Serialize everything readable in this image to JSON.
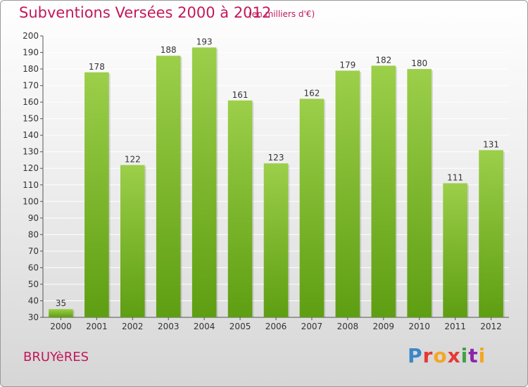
{
  "header": {
    "title": "Subventions Versées 2000 à 2012",
    "subtitle": "(en milliers d'€)"
  },
  "footer": {
    "place": "BRUYèRES",
    "logo_text": "Proxiti"
  },
  "colors": {
    "title": "#c2185b",
    "bar_top": "#9ccf4a",
    "bar_bottom": "#5e9e12",
    "grid": "#ffffff",
    "axis_text": "#333333"
  },
  "chart_data": {
    "type": "bar",
    "title": "Subventions Versées 2000 à 2012",
    "subtitle": "(en milliers d'€)",
    "categories": [
      "2000",
      "2001",
      "2002",
      "2003",
      "2004",
      "2005",
      "2006",
      "2007",
      "2008",
      "2009",
      "2010",
      "2011",
      "2012"
    ],
    "values": [
      35,
      178,
      122,
      188,
      193,
      161,
      123,
      162,
      179,
      182,
      180,
      111,
      131
    ],
    "ylim": [
      30,
      200
    ],
    "yticks": [
      30,
      40,
      50,
      60,
      70,
      80,
      90,
      100,
      110,
      120,
      130,
      140,
      150,
      160,
      170,
      180,
      190,
      200
    ],
    "grid": true,
    "data_labels": true,
    "legend": "none"
  }
}
